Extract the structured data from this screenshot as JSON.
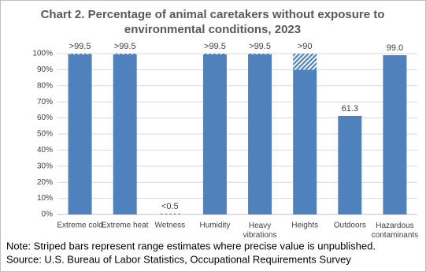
{
  "chart_data": {
    "type": "bar",
    "title": [
      "Chart 2. Percentage of animal caretakers without exposure to",
      "environmental conditions, 2023"
    ],
    "categories": [
      "Extreme cold",
      "Extreme heat",
      "Wetness",
      "Humidity",
      "Heavy vibrations",
      "Heights",
      "Outdoors",
      "Hazardous contaminants"
    ],
    "values": [
      99.5,
      99.5,
      0,
      99.5,
      99.5,
      90,
      61.3,
      99.0
    ],
    "value_labels": [
      ">99.5",
      ">99.5",
      "<0.5",
      ">99.5",
      ">99.5",
      ">90",
      "61.3",
      "99.0"
    ],
    "ranges": [
      [
        99.5,
        100
      ],
      [
        99.5,
        100
      ],
      [
        0,
        0.5
      ],
      [
        99.5,
        100
      ],
      [
        99.5,
        100
      ],
      [
        90,
        100
      ],
      null,
      null
    ],
    "color": "#4f81bd",
    "ylim": [
      0,
      100
    ],
    "yticks": [
      {
        "value": 0,
        "label": "0%"
      },
      {
        "value": 10,
        "label": "10%"
      },
      {
        "value": 20,
        "label": "20%"
      },
      {
        "value": 30,
        "label": "30%"
      },
      {
        "value": 40,
        "label": "40%"
      },
      {
        "value": 50,
        "label": "50%"
      },
      {
        "value": 60,
        "label": "60%"
      },
      {
        "value": 70,
        "label": "70%"
      },
      {
        "value": 80,
        "label": "80%"
      },
      {
        "value": 90,
        "label": "90%"
      },
      {
        "value": 100,
        "label": "100%"
      }
    ],
    "grid": true,
    "notes": [
      "Note: Striped bars represent range estimates where precise value is unpublished.",
      "Source: U.S. Bureau of Labor Statistics, Occupational Requirements Survey"
    ]
  }
}
